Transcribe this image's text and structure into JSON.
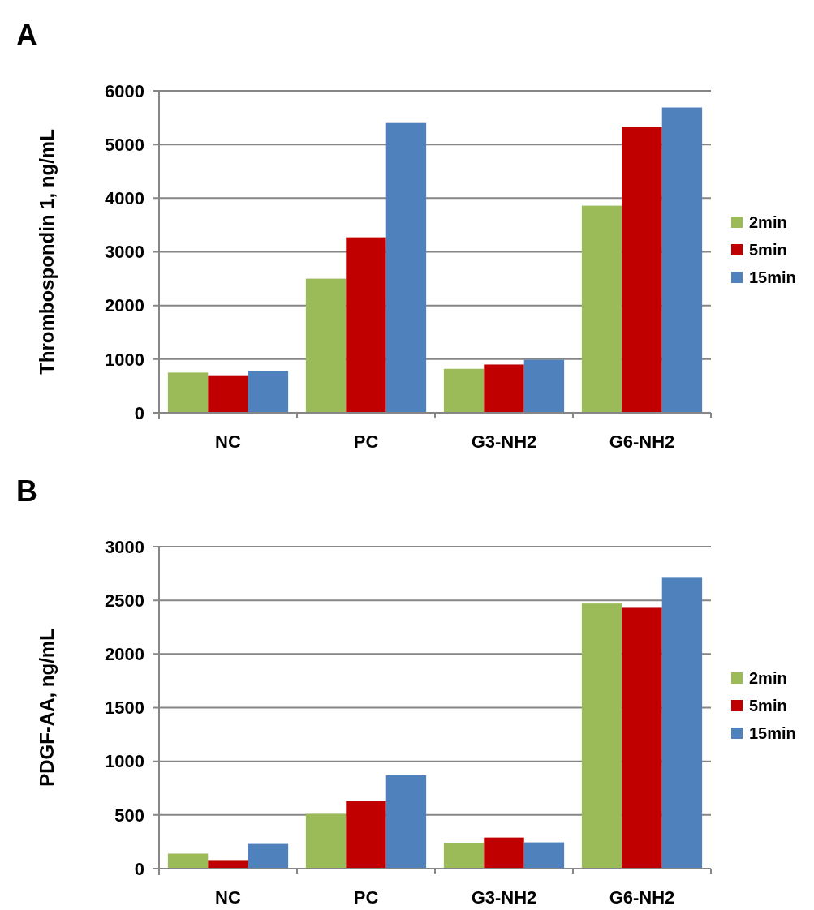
{
  "chart_data": [
    {
      "type": "bar",
      "title": "A",
      "ylabel": "Thrombospondin 1, ng/mL",
      "categories": [
        "NC",
        "PC",
        "G3-NH2",
        "G6-NH2"
      ],
      "series": [
        {
          "name": "2min",
          "color": "#9bbb59",
          "values": [
            750,
            2500,
            820,
            3860
          ]
        },
        {
          "name": "5min",
          "color": "#c00000",
          "values": [
            700,
            3270,
            900,
            5330
          ]
        },
        {
          "name": "15min",
          "color": "#4f81bd",
          "values": [
            780,
            5400,
            990,
            5690
          ]
        }
      ],
      "ylim": [
        0,
        6000
      ],
      "yticks": [
        0,
        1000,
        2000,
        3000,
        4000,
        5000,
        6000
      ],
      "grid": "y",
      "legend": "right"
    },
    {
      "type": "bar",
      "title": "B",
      "ylabel": "PDGF-AA, ng/mL",
      "categories": [
        "NC",
        "PC",
        "G3-NH2",
        "G6-NH2"
      ],
      "series": [
        {
          "name": "2min",
          "color": "#9bbb59",
          "values": [
            140,
            510,
            240,
            2470
          ]
        },
        {
          "name": "5min",
          "color": "#c00000",
          "values": [
            80,
            630,
            290,
            2430
          ]
        },
        {
          "name": "15min",
          "color": "#4f81bd",
          "values": [
            230,
            870,
            245,
            2710
          ]
        }
      ],
      "ylim": [
        0,
        3000
      ],
      "yticks": [
        0,
        500,
        1000,
        1500,
        2000,
        2500,
        3000
      ],
      "grid": "y",
      "legend": "right"
    }
  ]
}
